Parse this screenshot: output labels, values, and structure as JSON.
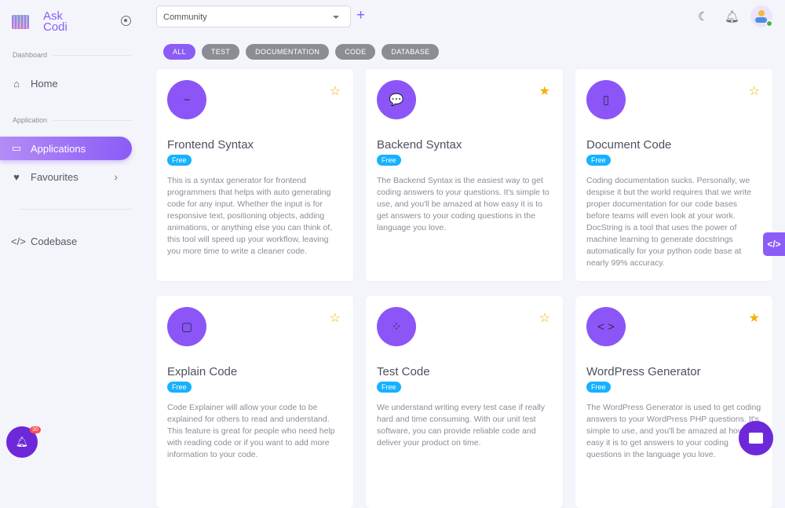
{
  "brand": {
    "name_line1": "Ask",
    "name_line2": "Codi"
  },
  "sidebar": {
    "sections": [
      "Dashboard",
      "Application"
    ],
    "items": [
      {
        "label": "Home",
        "icon": "home-icon"
      },
      {
        "label": "Applications",
        "icon": "window-icon",
        "active": true
      },
      {
        "label": "Favourites",
        "icon": "heart-icon"
      },
      {
        "label": "Codebase",
        "icon": "code-icon"
      }
    ],
    "notification_count": "30"
  },
  "topbar": {
    "select_value": "Community",
    "add_icon": "plus-icon",
    "icons": [
      "moon-icon",
      "bell-icon",
      "avatar"
    ]
  },
  "filters": [
    {
      "label": "ALL",
      "active": true
    },
    {
      "label": "TEST"
    },
    {
      "label": "DOCUMENTATION"
    },
    {
      "label": "CODE"
    },
    {
      "label": "DATABASE"
    }
  ],
  "accent": "#8b5cf6",
  "cards": [
    {
      "title": "Frontend Syntax",
      "badge": "Free",
      "favourite": false,
      "icon": "−",
      "desc": "This is a syntax generator for frontend programmers that helps with auto generating code for any input. Whether the input is for responsive text, positioning objects, adding animations, or anything else you can think of, this tool will speed up your workflow, leaving you more time to write a cleaner code."
    },
    {
      "title": "Backend Syntax",
      "badge": "Free",
      "favourite": true,
      "icon": "💬",
      "desc": "The Backend Syntax is the easiest way to get coding answers to your questions. It's simple to use, and you'll be amazed at how easy it is to get answers to your coding questions in the language you love."
    },
    {
      "title": "Document Code",
      "badge": "Free",
      "favourite": false,
      "icon": "▯",
      "desc": "Coding documentation sucks. Personally, we despise it but the world requires that we write proper documentation for our code bases before teams will even look at your work. DocString is a tool that uses the power of machine learning to generate docstrings automatically for your python code base at nearly 99% accuracy."
    },
    {
      "title": "Explain Code",
      "badge": "Free",
      "favourite": false,
      "icon": "▢",
      "desc": "Code Explainer will allow your code to be explained for others to read and understand. This feature is great for people who need help with reading code or if you want to add more information to your code."
    },
    {
      "title": "Test Code",
      "badge": "Free",
      "favourite": false,
      "icon": "⁘",
      "desc": "We understand writing every test case if really hard and time consuming. With our unit test software, you can provide reliable code and deliver your product on time."
    },
    {
      "title": "WordPress Generator",
      "badge": "Free",
      "favourite": true,
      "icon": "< >",
      "desc": "The WordPress Generator is used to get coding answers to your WordPress PHP questions. It's simple to use, and you'll be amazed at how easy it is to get answers to your coding questions in the language you love."
    }
  ]
}
